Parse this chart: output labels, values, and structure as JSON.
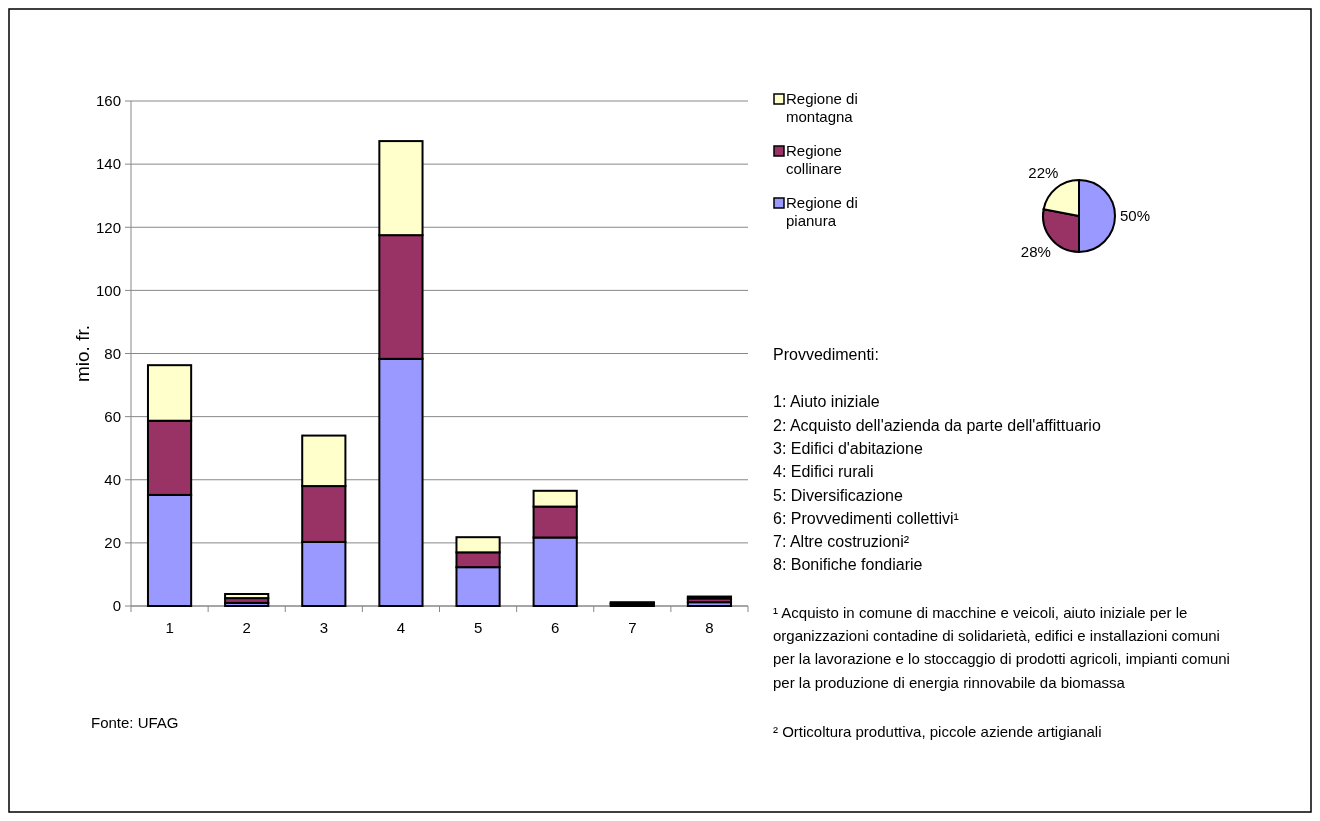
{
  "chart_data": [
    {
      "type": "bar",
      "stacked": true,
      "ylabel": "mio. fr.",
      "categories": [
        "1",
        "2",
        "3",
        "4",
        "5",
        "6",
        "7",
        "8"
      ],
      "ylim": [
        0,
        160
      ],
      "yticks": [
        0,
        20,
        40,
        60,
        80,
        100,
        120,
        140,
        160
      ],
      "grid": "y",
      "legend": "right",
      "series": [
        {
          "name": "Regione di pianura",
          "color": "#9999ff",
          "values": [
            35.2,
            1,
            20.3,
            78.3,
            12.3,
            21.7,
            0.6,
            1.2
          ]
        },
        {
          "name": "Regione collinare",
          "color": "#993366",
          "values": [
            23.5,
            1.5,
            17.7,
            39.2,
            4.7,
            9.8,
            0.3,
            1.2
          ]
        },
        {
          "name": "Regione di montagna",
          "color": "#ffffcc",
          "values": [
            17.6,
            1.3,
            16,
            29.8,
            4.8,
            5,
            0.3,
            0.6
          ]
        }
      ],
      "annotations": [
        "Provvedimenti:",
        "1: Aiuto iniziale",
        "2: Acquisto dell'azienda da parte dell'affittuario",
        "3: Edifici d'abitazione",
        "4: Edifici rurali",
        "5: Diversificazione",
        "6: Provvedimenti collettivi¹",
        "7: Altre costruzioni²",
        "8: Bonifiche fondiarie",
        "¹ Acquisto in comune di macchine e veicoli, aiuto iniziale per le organizzazioni contadine di solidarietà, edifici e installazioni comuni per la lavorazione e lo stoccaggio di prodotti agricoli, impianti comuni per la produzione di energia rinnovabile da biomassa",
        "² Orticoltura produttiva, piccole aziende artigianali",
        "Fonte: UFAG"
      ]
    },
    {
      "type": "pie",
      "categories": [
        null,
        null,
        null
      ],
      "values": [
        50,
        28,
        22
      ],
      "colors": [
        "#9999ff",
        "#993366",
        "#ffffcc"
      ],
      "value_labels": [
        "50%",
        "28%",
        "22%"
      ]
    }
  ]
}
